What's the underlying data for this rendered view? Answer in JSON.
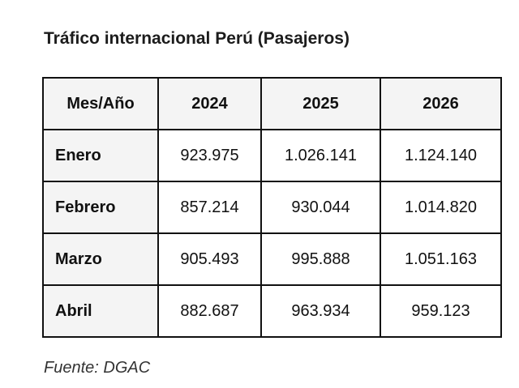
{
  "title": "Tráfico internacional Perú (Pasajeros)",
  "table": {
    "headers": [
      "Mes/Año",
      "2024",
      "2025",
      "2026"
    ],
    "rows": [
      {
        "label": "Enero",
        "values": [
          "923.975",
          "1.026.141",
          "1.124.140"
        ]
      },
      {
        "label": "Febrero",
        "values": [
          "857.214",
          "930.044",
          "1.014.820"
        ]
      },
      {
        "label": "Marzo",
        "values": [
          "905.493",
          "995.888",
          "1.051.163"
        ]
      },
      {
        "label": "Abril",
        "values": [
          "882.687",
          "963.934",
          "959.123"
        ]
      }
    ]
  },
  "source": "Fuente: DGAC"
}
